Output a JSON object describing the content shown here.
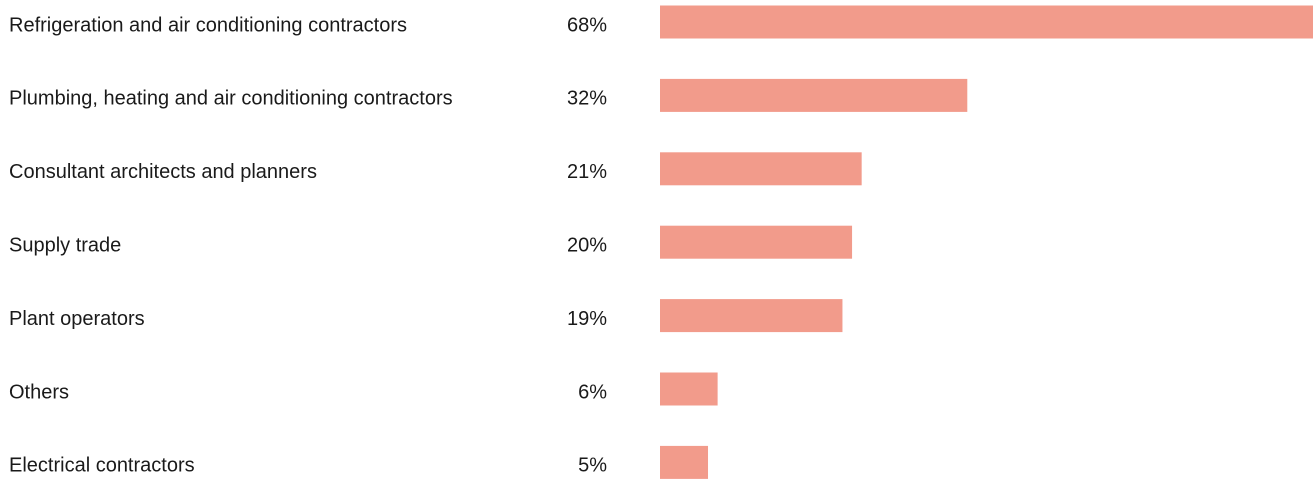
{
  "chart_data": {
    "type": "bar",
    "orientation": "horizontal",
    "categories": [
      "Refrigeration and air conditioning contractors",
      "Plumbing, heating and air conditioning contractors",
      "Consultant architects and planners",
      "Supply trade",
      "Plant operators",
      "Others",
      "Electrical contractors"
    ],
    "values": [
      68,
      32,
      21,
      20,
      19,
      6,
      5
    ],
    "value_labels": [
      "68%",
      "32%",
      "21%",
      "20%",
      "19%",
      "6%",
      "5%"
    ],
    "color": "#f29b8b"
  }
}
